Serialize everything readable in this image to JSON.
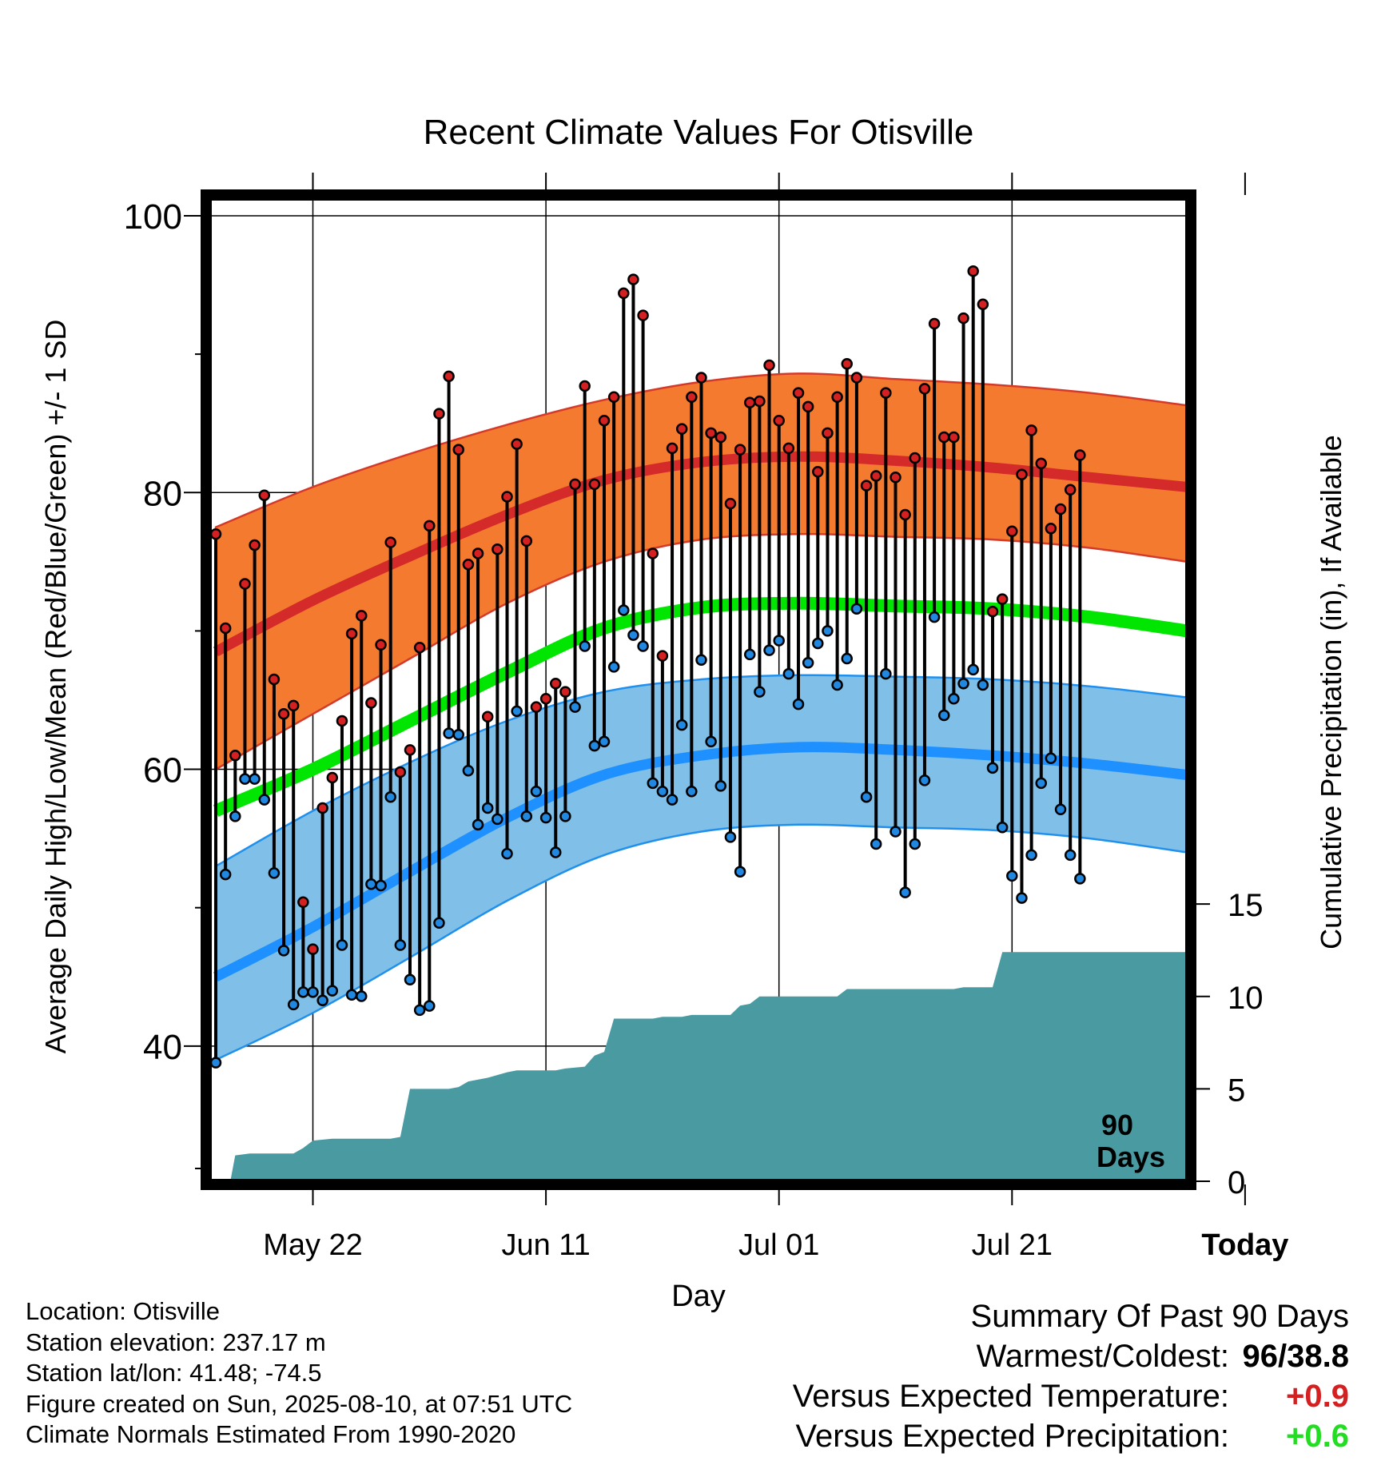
{
  "title": "Recent Climate Values For Otisville",
  "chart_data": {
    "type": "line",
    "title": "Recent Climate Values For Otisville",
    "xlabel": "Day",
    "ylabel": "Average Daily High/Low/Mean (Red/Blue/Green) +/- 1 SD",
    "y2label": "Cumulative Precipitation (in), If Available",
    "x_tick_labels": [
      "May 22",
      "Jun 11",
      "Jul 01",
      "Jul 21",
      "Today"
    ],
    "y_ticks": [
      40,
      60,
      80,
      100
    ],
    "y2_ticks": [
      0,
      5,
      10,
      15
    ],
    "ylim": [
      30,
      101.5
    ],
    "y2lim": [
      0,
      16
    ],
    "grid": true,
    "marker_annotation": "90 Days",
    "x_days": [
      0,
      10,
      20,
      30,
      40,
      50,
      60,
      70,
      80,
      90,
      100
    ],
    "normal_high": [
      68.5,
      72.2,
      75.4,
      78.4,
      80.9,
      82.2,
      82.6,
      82.3,
      81.8,
      81.1,
      80.4
    ],
    "normal_high_upper": [
      77.5,
      80.4,
      82.8,
      84.9,
      86.7,
      88.0,
      88.6,
      88.2,
      87.8,
      87.2,
      86.3
    ],
    "normal_high_lower": [
      60.0,
      64.0,
      68.0,
      72.0,
      75.0,
      76.6,
      77.0,
      76.8,
      76.6,
      76.0,
      75.0
    ],
    "normal_mean": [
      57.0,
      60.0,
      63.5,
      67.0,
      70.2,
      71.7,
      72.0,
      71.8,
      71.6,
      71.0,
      70.0
    ],
    "normal_low": [
      45.0,
      48.6,
      52.6,
      56.5,
      59.6,
      61.0,
      61.6,
      61.4,
      61.0,
      60.4,
      59.6
    ],
    "normal_low_upper": [
      53.0,
      57.0,
      60.5,
      63.5,
      65.6,
      66.5,
      66.8,
      66.7,
      66.5,
      66.0,
      65.2
    ],
    "normal_low_lower": [
      39.0,
      42.4,
      46.4,
      50.5,
      53.8,
      55.5,
      56.0,
      55.8,
      55.6,
      55.0,
      54.0
    ],
    "daily_high": [
      77,
      70.2,
      61,
      73.4,
      76.2,
      79.8,
      66.5,
      64,
      64.6,
      50.4,
      47,
      57.2,
      59.4,
      63.5,
      69.8,
      71.1,
      64.8,
      69,
      76.4,
      59.8,
      61.4,
      68.8,
      77.6,
      85.7,
      88.4,
      83.1,
      74.8,
      75.6,
      63.8,
      75.9,
      79.7,
      83.5,
      76.5,
      64.5,
      65.1,
      66.2,
      65.6,
      80.6,
      87.7,
      80.6,
      85.2,
      86.9,
      94.4,
      95.4,
      92.8,
      75.6,
      68.2,
      83.2,
      84.6,
      86.9,
      88.3,
      84.3,
      84.0,
      79.2,
      83.1,
      86.5,
      86.6,
      89.2,
      85.2,
      83.2,
      87.2,
      86.2,
      81.5,
      84.3,
      86.9,
      89.3,
      88.3,
      80.5,
      81.2,
      87.2,
      81.1,
      78.4,
      82.5,
      87.5,
      92.2,
      84.0,
      84.0,
      92.6,
      96.0,
      93.6,
      71.4,
      72.3,
      77.2,
      81.3,
      84.5,
      82.1,
      77.4,
      78.8,
      80.2,
      82.7
    ],
    "daily_low": [
      38.8,
      52.4,
      56.6,
      59.3,
      59.3,
      57.8,
      52.5,
      46.9,
      43.0,
      43.9,
      43.9,
      43.3,
      44.0,
      47.3,
      43.7,
      43.6,
      51.7,
      51.6,
      58.0,
      47.3,
      44.8,
      42.6,
      42.9,
      48.9,
      62.6,
      62.5,
      59.9,
      56.0,
      57.2,
      56.4,
      53.9,
      64.2,
      56.6,
      58.4,
      56.5,
      54.0,
      56.6,
      64.5,
      68.9,
      61.7,
      62.0,
      67.4,
      71.5,
      69.7,
      68.9,
      59.0,
      58.4,
      57.8,
      63.2,
      58.4,
      67.9,
      62.0,
      58.8,
      55.1,
      52.6,
      68.3,
      65.6,
      68.6,
      69.3,
      66.9,
      64.7,
      67.7,
      69.1,
      70.0,
      66.1,
      68.0,
      71.6,
      58.0,
      54.6,
      66.9,
      55.5,
      51.1,
      54.6,
      59.2,
      71.0,
      63.9,
      65.1,
      66.2,
      67.2,
      66.1,
      60.1,
      55.8,
      52.3,
      50.7,
      53.8,
      59.0,
      60.8,
      57.1,
      53.8,
      52.1
    ],
    "cumulative_precip": [
      [
        1.5,
        0
      ],
      [
        2.0,
        1.4
      ],
      [
        3.5,
        1.5
      ],
      [
        8.0,
        1.5
      ],
      [
        9.0,
        1.8
      ],
      [
        10.0,
        2.2
      ],
      [
        12.0,
        2.3
      ],
      [
        18.0,
        2.3
      ],
      [
        19.0,
        2.4
      ],
      [
        20.0,
        5.0
      ],
      [
        24.0,
        5.0
      ],
      [
        25.0,
        5.1
      ],
      [
        26.0,
        5.4
      ],
      [
        28.0,
        5.6
      ],
      [
        30.0,
        5.9
      ],
      [
        31.0,
        6.0
      ],
      [
        35.0,
        6.0
      ],
      [
        36.0,
        6.1
      ],
      [
        38.0,
        6.2
      ],
      [
        39.0,
        6.8
      ],
      [
        40.0,
        7.0
      ],
      [
        41.0,
        8.8
      ],
      [
        45.0,
        8.8
      ],
      [
        46.0,
        8.9
      ],
      [
        48.0,
        8.9
      ],
      [
        49.0,
        9.0
      ],
      [
        53.0,
        9.0
      ],
      [
        54.0,
        9.5
      ],
      [
        55.0,
        9.6
      ],
      [
        56.0,
        10.0
      ],
      [
        64.0,
        10.0
      ],
      [
        65.0,
        10.4
      ],
      [
        76.0,
        10.4
      ],
      [
        77.0,
        10.5
      ],
      [
        80.0,
        10.5
      ],
      [
        81.0,
        12.4
      ],
      [
        101.0,
        12.4
      ]
    ],
    "colors": {
      "high_band": "#f47a30",
      "high_line": "#d42a2a",
      "low_band": "#80c0e8",
      "low_line": "#1e90ff",
      "mean_line": "#00e600",
      "precip": "#4a9aa2",
      "high_dot": "#d42020",
      "low_dot": "#2088e0",
      "temp_anomaly": "#d42020",
      "precip_anomaly": "#22dd22"
    }
  },
  "meta": {
    "location": "Location: Otisville",
    "elevation": "Station elevation: 237.17 m",
    "latlon": "Station lat/lon: 41.48; -74.5",
    "created": "Figure created on Sun, 2025-08-10, at 07:51 UTC",
    "normals": "Climate Normals Estimated From 1990-2020"
  },
  "summary": {
    "title": "Summary Of Past 90 Days",
    "warmest_label": "Warmest/Coldest:",
    "warmest_value": "96/38.8",
    "temp_label": "Versus Expected Temperature:",
    "temp_value": "+0.9",
    "precip_label": "Versus Expected Precipitation:",
    "precip_value": "+0.6"
  }
}
